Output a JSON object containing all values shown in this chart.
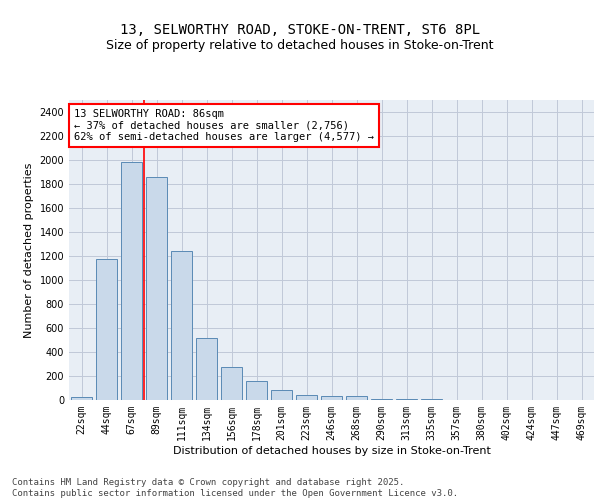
{
  "title_line1": "13, SELWORTHY ROAD, STOKE-ON-TRENT, ST6 8PL",
  "title_line2": "Size of property relative to detached houses in Stoke-on-Trent",
  "xlabel": "Distribution of detached houses by size in Stoke-on-Trent",
  "ylabel": "Number of detached properties",
  "categories": [
    "22sqm",
    "44sqm",
    "67sqm",
    "89sqm",
    "111sqm",
    "134sqm",
    "156sqm",
    "178sqm",
    "201sqm",
    "223sqm",
    "246sqm",
    "268sqm",
    "290sqm",
    "313sqm",
    "335sqm",
    "357sqm",
    "380sqm",
    "402sqm",
    "424sqm",
    "447sqm",
    "469sqm"
  ],
  "values": [
    25,
    1175,
    1980,
    1855,
    1245,
    515,
    275,
    155,
    85,
    45,
    30,
    30,
    10,
    5,
    5,
    3,
    2,
    2,
    2,
    2,
    2
  ],
  "bar_color": "#c9d9ea",
  "bar_edge_color": "#5a8ab5",
  "vline_color": "red",
  "vline_position": 2.5,
  "annotation_text": "13 SELWORTHY ROAD: 86sqm\n← 37% of detached houses are smaller (2,756)\n62% of semi-detached houses are larger (4,577) →",
  "annotation_box_color": "white",
  "annotation_box_edge_color": "red",
  "ylim": [
    0,
    2500
  ],
  "yticks": [
    0,
    200,
    400,
    600,
    800,
    1000,
    1200,
    1400,
    1600,
    1800,
    2000,
    2200,
    2400
  ],
  "grid_color": "#c0c8d8",
  "background_color": "#e8eef5",
  "footer_text": "Contains HM Land Registry data © Crown copyright and database right 2025.\nContains public sector information licensed under the Open Government Licence v3.0.",
  "title_fontsize": 10,
  "subtitle_fontsize": 9,
  "axis_label_fontsize": 8,
  "tick_fontsize": 7,
  "annotation_fontsize": 7.5,
  "footer_fontsize": 6.5
}
